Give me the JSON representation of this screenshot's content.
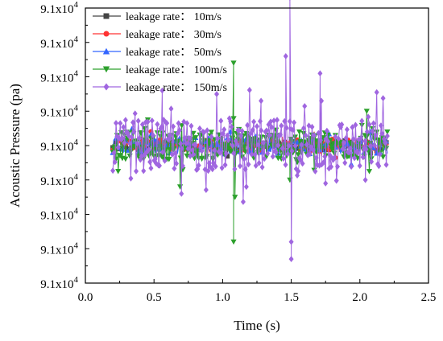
{
  "chart_data": {
    "type": "line",
    "xlabel": "Time (s)",
    "ylabel": "Acoustic Pressure (pa)",
    "xlim": [
      0.0,
      2.5
    ],
    "ylim": [
      -4,
      4
    ],
    "x_ticks": [
      "0.0",
      "0.5",
      "1.0",
      "1.5",
      "2.0",
      "2.5"
    ],
    "y_ticks": [
      {
        "mantissa": "9.1x10",
        "exp": "4"
      },
      {
        "mantissa": "9.1x10",
        "exp": "4"
      },
      {
        "mantissa": "9.1x10",
        "exp": "4"
      },
      {
        "mantissa": "9.1x10",
        "exp": "4"
      },
      {
        "mantissa": "9.1x10",
        "exp": "4"
      },
      {
        "mantissa": "9.1x10",
        "exp": "4"
      },
      {
        "mantissa": "9.1x10",
        "exp": "4"
      },
      {
        "mantissa": "9.1x10",
        "exp": "4"
      },
      {
        "mantissa": "9.1x10",
        "exp": "4"
      }
    ],
    "grid": false,
    "legend_position": "top-left",
    "series": [
      {
        "name": "leakage rate：  10m/s",
        "color": "#444444",
        "marker": "square"
      },
      {
        "name": "leakage rate：  30m/s",
        "color": "#ff3333",
        "marker": "circle"
      },
      {
        "name": "leakage rate：  50m/s",
        "color": "#3366ff",
        "marker": "triangle-up"
      },
      {
        "name": "leakage rate：  100m/s",
        "color": "#2ca02c",
        "marker": "triangle-down"
      },
      {
        "name": "leakage rate：  150m/s",
        "color": "#a066e0",
        "marker": "diamond"
      }
    ]
  }
}
